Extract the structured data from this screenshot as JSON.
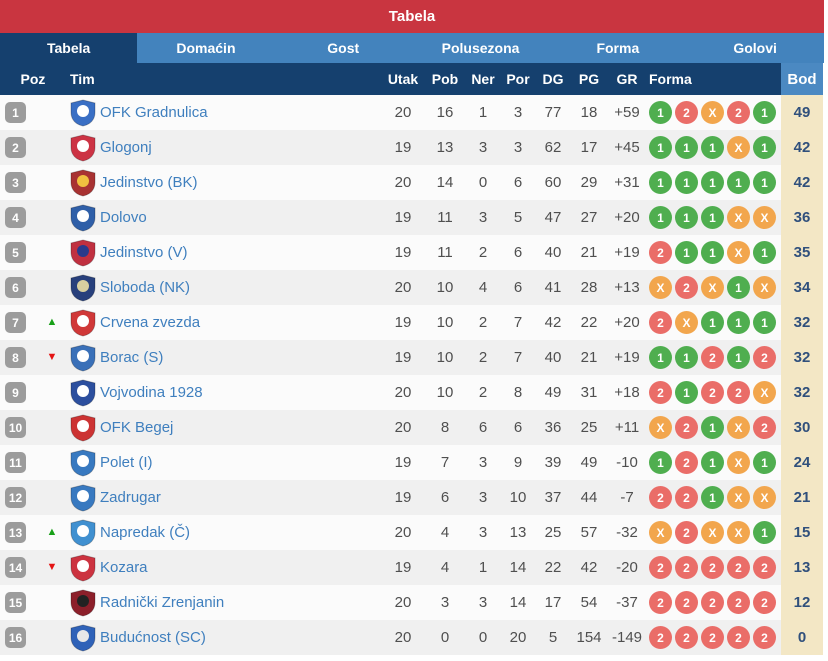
{
  "title_bar": {
    "title": "Tabela"
  },
  "tabs": [
    {
      "label": "Tabela",
      "active": true
    },
    {
      "label": "Domaćin",
      "active": false
    },
    {
      "label": "Gost",
      "active": false
    },
    {
      "label": "Polusezona",
      "active": false
    },
    {
      "label": "Forma",
      "active": false
    },
    {
      "label": "Golovi",
      "active": false
    }
  ],
  "columns": {
    "poz": "Poz",
    "tim": "Tim",
    "utak": "Utak",
    "pob": "Pob",
    "ner": "Ner",
    "por": "Por",
    "dg": "DG",
    "pg": "PG",
    "gr": "GR",
    "forma": "Forma",
    "bod": "Bod"
  },
  "colors": {
    "title_bar_red": "#c93540",
    "tab_blue": "#4383bd",
    "header_navy": "#15406e",
    "bod_header_blue": "#4b89c2",
    "bod_column_cream": "#f3e7c5",
    "team_link_blue": "#3f7fbe",
    "position_badge_gray": "#9c9c9c",
    "form_win_green": "#4fae4f",
    "form_loss_red": "#ea6d68",
    "form_draw_orange": "#f2a64d",
    "movement_up_green": "#18a018",
    "movement_down_red": "#e41414"
  },
  "rows": [
    {
      "pos": "1",
      "movement": null,
      "team": "OFK Gradnulica",
      "logo": {
        "primary": "#3a6fc4",
        "secondary": "#ffffff"
      },
      "utak": "20",
      "pob": "16",
      "ner": "1",
      "por": "3",
      "dg": "77",
      "pg": "18",
      "gr": "+59",
      "forma": [
        {
          "label": "1",
          "result": "green"
        },
        {
          "label": "2",
          "result": "red"
        },
        {
          "label": "X",
          "result": "orange"
        },
        {
          "label": "2",
          "result": "red"
        },
        {
          "label": "1",
          "result": "green"
        }
      ],
      "bod": "49"
    },
    {
      "pos": "2",
      "movement": null,
      "team": "Glogonj",
      "logo": {
        "primary": "#cc3344",
        "secondary": "#ffffff"
      },
      "utak": "19",
      "pob": "13",
      "ner": "3",
      "por": "3",
      "dg": "62",
      "pg": "17",
      "gr": "+45",
      "forma": [
        {
          "label": "1",
          "result": "green"
        },
        {
          "label": "1",
          "result": "green"
        },
        {
          "label": "1",
          "result": "green"
        },
        {
          "label": "X",
          "result": "orange"
        },
        {
          "label": "1",
          "result": "green"
        }
      ],
      "bod": "42"
    },
    {
      "pos": "3",
      "movement": null,
      "team": "Jedinstvo (BK)",
      "logo": {
        "primary": "#a83232",
        "secondary": "#f0c040"
      },
      "utak": "20",
      "pob": "14",
      "ner": "0",
      "por": "6",
      "dg": "60",
      "pg": "29",
      "gr": "+31",
      "forma": [
        {
          "label": "1",
          "result": "green"
        },
        {
          "label": "1",
          "result": "green"
        },
        {
          "label": "1",
          "result": "green"
        },
        {
          "label": "1",
          "result": "green"
        },
        {
          "label": "1",
          "result": "green"
        }
      ],
      "bod": "42"
    },
    {
      "pos": "4",
      "movement": null,
      "team": "Dolovo",
      "logo": {
        "primary": "#2f5fa8",
        "secondary": "#ffffff"
      },
      "utak": "19",
      "pob": "11",
      "ner": "3",
      "por": "5",
      "dg": "47",
      "pg": "27",
      "gr": "+20",
      "forma": [
        {
          "label": "1",
          "result": "green"
        },
        {
          "label": "1",
          "result": "green"
        },
        {
          "label": "1",
          "result": "green"
        },
        {
          "label": "X",
          "result": "orange"
        },
        {
          "label": "X",
          "result": "orange"
        }
      ],
      "bod": "36"
    },
    {
      "pos": "5",
      "movement": null,
      "team": "Jedinstvo (V)",
      "logo": {
        "primary": "#c03040",
        "secondary": "#283a8c"
      },
      "utak": "19",
      "pob": "11",
      "ner": "2",
      "por": "6",
      "dg": "40",
      "pg": "21",
      "gr": "+19",
      "forma": [
        {
          "label": "2",
          "result": "red"
        },
        {
          "label": "1",
          "result": "green"
        },
        {
          "label": "1",
          "result": "green"
        },
        {
          "label": "X",
          "result": "orange"
        },
        {
          "label": "1",
          "result": "green"
        }
      ],
      "bod": "35"
    },
    {
      "pos": "6",
      "movement": null,
      "team": "Sloboda (NK)",
      "logo": {
        "primary": "#28407c",
        "secondary": "#d8cfa0"
      },
      "utak": "20",
      "pob": "10",
      "ner": "4",
      "por": "6",
      "dg": "41",
      "pg": "28",
      "gr": "+13",
      "forma": [
        {
          "label": "X",
          "result": "orange"
        },
        {
          "label": "2",
          "result": "red"
        },
        {
          "label": "X",
          "result": "orange"
        },
        {
          "label": "1",
          "result": "green"
        },
        {
          "label": "X",
          "result": "orange"
        }
      ],
      "bod": "34"
    },
    {
      "pos": "7",
      "movement": "up",
      "team": "Crvena zvezda",
      "logo": {
        "primary": "#d03838",
        "secondary": "#ffffff"
      },
      "utak": "19",
      "pob": "10",
      "ner": "2",
      "por": "7",
      "dg": "42",
      "pg": "22",
      "gr": "+20",
      "forma": [
        {
          "label": "2",
          "result": "red"
        },
        {
          "label": "X",
          "result": "orange"
        },
        {
          "label": "1",
          "result": "green"
        },
        {
          "label": "1",
          "result": "green"
        },
        {
          "label": "1",
          "result": "green"
        }
      ],
      "bod": "32"
    },
    {
      "pos": "8",
      "movement": "down",
      "team": "Borac (S)",
      "logo": {
        "primary": "#3a70b8",
        "secondary": "#ffffff"
      },
      "utak": "19",
      "pob": "10",
      "ner": "2",
      "por": "7",
      "dg": "40",
      "pg": "21",
      "gr": "+19",
      "forma": [
        {
          "label": "1",
          "result": "green"
        },
        {
          "label": "1",
          "result": "green"
        },
        {
          "label": "2",
          "result": "red"
        },
        {
          "label": "1",
          "result": "green"
        },
        {
          "label": "2",
          "result": "red"
        }
      ],
      "bod": "32"
    },
    {
      "pos": "9",
      "movement": null,
      "team": "Vojvodina 1928",
      "logo": {
        "primary": "#2c4f9e",
        "secondary": "#ffffff"
      },
      "utak": "20",
      "pob": "10",
      "ner": "2",
      "por": "8",
      "dg": "49",
      "pg": "31",
      "gr": "+18",
      "forma": [
        {
          "label": "2",
          "result": "red"
        },
        {
          "label": "1",
          "result": "green"
        },
        {
          "label": "2",
          "result": "red"
        },
        {
          "label": "2",
          "result": "red"
        },
        {
          "label": "X",
          "result": "orange"
        }
      ],
      "bod": "32"
    },
    {
      "pos": "10",
      "movement": null,
      "team": "OFK Begej",
      "logo": {
        "primary": "#cc3333",
        "secondary": "#ffffff"
      },
      "utak": "20",
      "pob": "8",
      "ner": "6",
      "por": "6",
      "dg": "36",
      "pg": "25",
      "gr": "+11",
      "forma": [
        {
          "label": "X",
          "result": "orange"
        },
        {
          "label": "2",
          "result": "red"
        },
        {
          "label": "1",
          "result": "green"
        },
        {
          "label": "X",
          "result": "orange"
        },
        {
          "label": "2",
          "result": "red"
        }
      ],
      "bod": "30"
    },
    {
      "pos": "11",
      "movement": null,
      "team": "Polet (I)",
      "logo": {
        "primary": "#3879c0",
        "secondary": "#ffffff"
      },
      "utak": "19",
      "pob": "7",
      "ner": "3",
      "por": "9",
      "dg": "39",
      "pg": "49",
      "gr": "-10",
      "forma": [
        {
          "label": "1",
          "result": "green"
        },
        {
          "label": "2",
          "result": "red"
        },
        {
          "label": "1",
          "result": "green"
        },
        {
          "label": "X",
          "result": "orange"
        },
        {
          "label": "1",
          "result": "green"
        }
      ],
      "bod": "24"
    },
    {
      "pos": "12",
      "movement": null,
      "team": "Zadrugar",
      "logo": {
        "primary": "#3879c0",
        "secondary": "#ffffff"
      },
      "utak": "19",
      "pob": "6",
      "ner": "3",
      "por": "10",
      "dg": "37",
      "pg": "44",
      "gr": "-7",
      "forma": [
        {
          "label": "2",
          "result": "red"
        },
        {
          "label": "2",
          "result": "red"
        },
        {
          "label": "1",
          "result": "green"
        },
        {
          "label": "X",
          "result": "orange"
        },
        {
          "label": "X",
          "result": "orange"
        }
      ],
      "bod": "21"
    },
    {
      "pos": "13",
      "movement": "up",
      "team": "Napredak (Č)",
      "logo": {
        "primary": "#4090d0",
        "secondary": "#ffffff"
      },
      "utak": "20",
      "pob": "4",
      "ner": "3",
      "por": "13",
      "dg": "25",
      "pg": "57",
      "gr": "-32",
      "forma": [
        {
          "label": "X",
          "result": "orange"
        },
        {
          "label": "2",
          "result": "red"
        },
        {
          "label": "X",
          "result": "orange"
        },
        {
          "label": "X",
          "result": "orange"
        },
        {
          "label": "1",
          "result": "green"
        }
      ],
      "bod": "15"
    },
    {
      "pos": "14",
      "movement": "down",
      "team": "Kozara",
      "logo": {
        "primary": "#cc3340",
        "secondary": "#ffffff"
      },
      "utak": "19",
      "pob": "4",
      "ner": "1",
      "por": "14",
      "dg": "22",
      "pg": "42",
      "gr": "-20",
      "forma": [
        {
          "label": "2",
          "result": "red"
        },
        {
          "label": "2",
          "result": "red"
        },
        {
          "label": "2",
          "result": "red"
        },
        {
          "label": "2",
          "result": "red"
        },
        {
          "label": "2",
          "result": "red"
        }
      ],
      "bod": "13"
    },
    {
      "pos": "15",
      "movement": null,
      "team": "Radnički Zrenjanin",
      "logo": {
        "primary": "#8c1f2a",
        "secondary": "#222222"
      },
      "utak": "20",
      "pob": "3",
      "ner": "3",
      "por": "14",
      "dg": "17",
      "pg": "54",
      "gr": "-37",
      "forma": [
        {
          "label": "2",
          "result": "red"
        },
        {
          "label": "2",
          "result": "red"
        },
        {
          "label": "2",
          "result": "red"
        },
        {
          "label": "2",
          "result": "red"
        },
        {
          "label": "2",
          "result": "red"
        }
      ],
      "bod": "12"
    },
    {
      "pos": "16",
      "movement": null,
      "team": "Budućnost (SC)",
      "logo": {
        "primary": "#2f62b8",
        "secondary": "#e8e8e8"
      },
      "utak": "20",
      "pob": "0",
      "ner": "0",
      "por": "20",
      "dg": "5",
      "pg": "154",
      "gr": "-149",
      "forma": [
        {
          "label": "2",
          "result": "red"
        },
        {
          "label": "2",
          "result": "red"
        },
        {
          "label": "2",
          "result": "red"
        },
        {
          "label": "2",
          "result": "red"
        },
        {
          "label": "2",
          "result": "red"
        }
      ],
      "bod": "0"
    }
  ]
}
